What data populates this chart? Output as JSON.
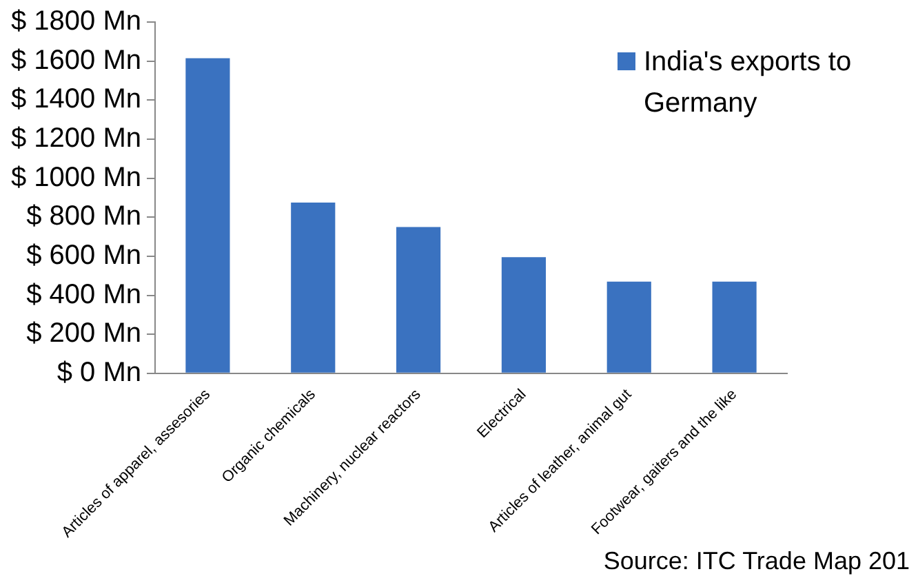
{
  "chart_data": {
    "type": "bar",
    "categories": [
      "Articles of apparel, assesories",
      "Organic chemicals",
      "Machinery, nuclear reactors",
      "Electrical",
      "Articles of leather, animal gut",
      "Footwear, gaiters and the like"
    ],
    "series": [
      {
        "name": "India's exports  to Germany",
        "color": "#3a72c0",
        "values": [
          1615,
          875,
          750,
          595,
          470,
          470
        ]
      }
    ],
    "ylim": [
      0,
      1800
    ],
    "yticks": [
      {
        "value": 0,
        "label": "$ 0 Mn"
      },
      {
        "value": 200,
        "label": "$ 200 Mn"
      },
      {
        "value": 400,
        "label": "$ 400 Mn"
      },
      {
        "value": 600,
        "label": "$ 600 Mn"
      },
      {
        "value": 800,
        "label": "$ 800 Mn"
      },
      {
        "value": 1000,
        "label": "$ 1000 Mn"
      },
      {
        "value": 1200,
        "label": "$ 1200 Mn"
      },
      {
        "value": 1400,
        "label": "$ 1400 Mn"
      },
      {
        "value": 1600,
        "label": "$ 1600 Mn"
      },
      {
        "value": 1800,
        "label": "$ 1800 Mn"
      }
    ],
    "grid": false,
    "legend": "top right",
    "annotations": [
      "Source: ITC Trade Map 201"
    ]
  }
}
